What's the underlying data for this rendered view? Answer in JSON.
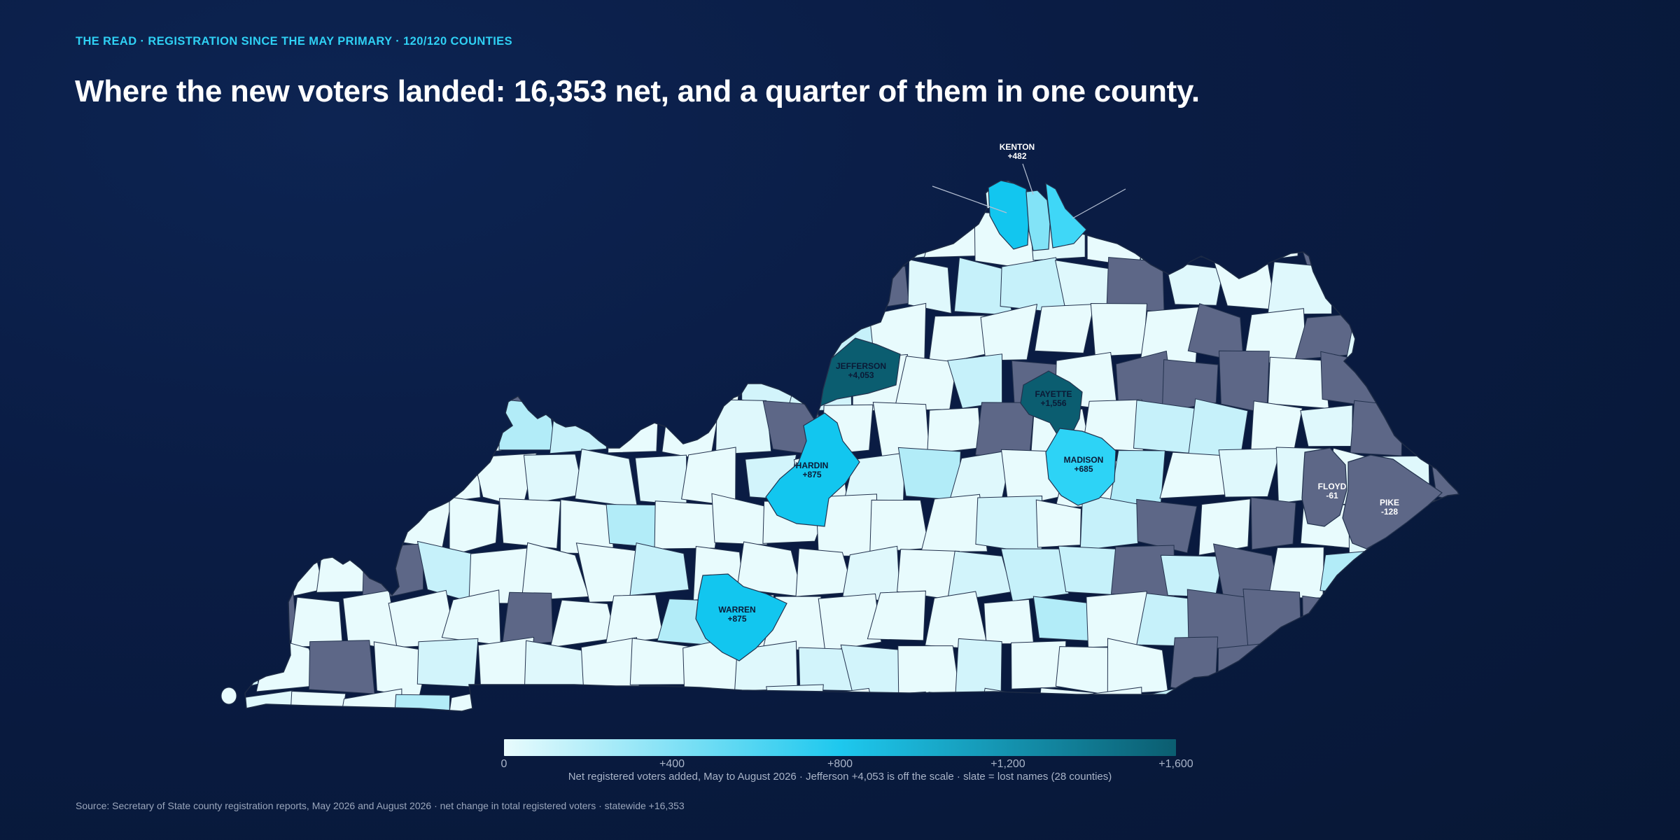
{
  "header": {
    "kicker": "THE READ · REGISTRATION SINCE THE MAY PRIMARY · 120/120 COUNTIES",
    "headline": "Where the new voters landed: 16,353 net, and a quarter of them in one county."
  },
  "map_data": {
    "type": "choropleth",
    "region": "Kentucky counties",
    "colors": {
      "scale_low": "#e8fbfd",
      "scale_mid": "#1ec8ee",
      "scale_high": "#0b5d70",
      "loss": "#5d6787",
      "border": "#23324e"
    },
    "scale_domain": [
      0,
      1600
    ],
    "labeled_counties": [
      {
        "name": "KENTON",
        "value": "+482",
        "net": 482
      },
      {
        "name": "JEFFERSON",
        "value": "+4,053",
        "net": 4053
      },
      {
        "name": "FAYETTE",
        "value": "+1,556",
        "net": 1556
      },
      {
        "name": "HARDIN",
        "value": "+875",
        "net": 875
      },
      {
        "name": "MADISON",
        "value": "+685",
        "net": 685
      },
      {
        "name": "WARREN",
        "value": "+875",
        "net": 875
      },
      {
        "name": "FLOYD",
        "value": "-61",
        "net": -61
      },
      {
        "name": "PIKE",
        "value": "-128",
        "net": -128
      }
    ]
  },
  "legend": {
    "ticks": [
      "0",
      "+400",
      "+800",
      "+1,200",
      "+1,600"
    ],
    "tick_values": [
      0,
      400,
      800,
      1200,
      1600
    ],
    "caption": "Net registered voters added, May to August 2026 · Jefferson +4,053 is off the scale · slate = lost names (28 counties)"
  },
  "footer": {
    "source": "Source: Secretary of State county registration reports, May 2026 and August 2026 · net change in total registered voters · statewide +16,353"
  }
}
